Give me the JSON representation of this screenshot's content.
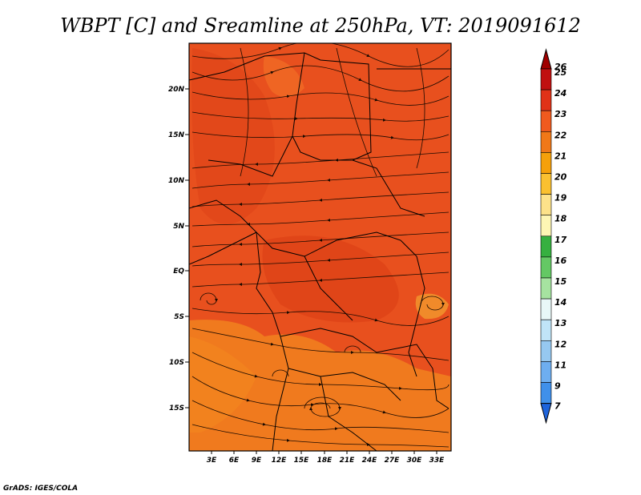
{
  "title": "WBPT [C] and Sreamline at 250hPa, VT: 2019091612",
  "credit": "GrADS: IGES/COLA",
  "map": {
    "lat_ticks": [
      "20N",
      "15N",
      "10N",
      "5N",
      "EQ",
      "5S",
      "10S",
      "15S"
    ],
    "lon_ticks": [
      "3E",
      "6E",
      "9E",
      "12E",
      "15E",
      "18E",
      "21E",
      "24E",
      "27E",
      "30E",
      "33E"
    ],
    "field_colors": {
      "dominant": "#e8501e",
      "warm": "#d83c14",
      "cooler": "#f0781e"
    }
  },
  "colorbar": {
    "levels": [
      {
        "label": "26",
        "color": "#a00000"
      },
      {
        "label": "25",
        "color": "#c01010"
      },
      {
        "label": "24",
        "color": "#e03218"
      },
      {
        "label": "23",
        "color": "#f05a1e"
      },
      {
        "label": "22",
        "color": "#f07818"
      },
      {
        "label": "21",
        "color": "#f5a00a"
      },
      {
        "label": "20",
        "color": "#fac030"
      },
      {
        "label": "19",
        "color": "#fde28a"
      },
      {
        "label": "18",
        "color": "#fef6b4"
      },
      {
        "label": "17",
        "color": "#36b040"
      },
      {
        "label": "16",
        "color": "#64c864"
      },
      {
        "label": "15",
        "color": "#a6e3a0"
      },
      {
        "label": "14",
        "color": "#e8f8f8"
      },
      {
        "label": "13",
        "color": "#c0e4f8"
      },
      {
        "label": "12",
        "color": "#96c8f0"
      },
      {
        "label": "11",
        "color": "#6eaef0"
      },
      {
        "label": "9",
        "color": "#4090ea"
      },
      {
        "label": "7",
        "color": "#1e64dc"
      }
    ]
  }
}
